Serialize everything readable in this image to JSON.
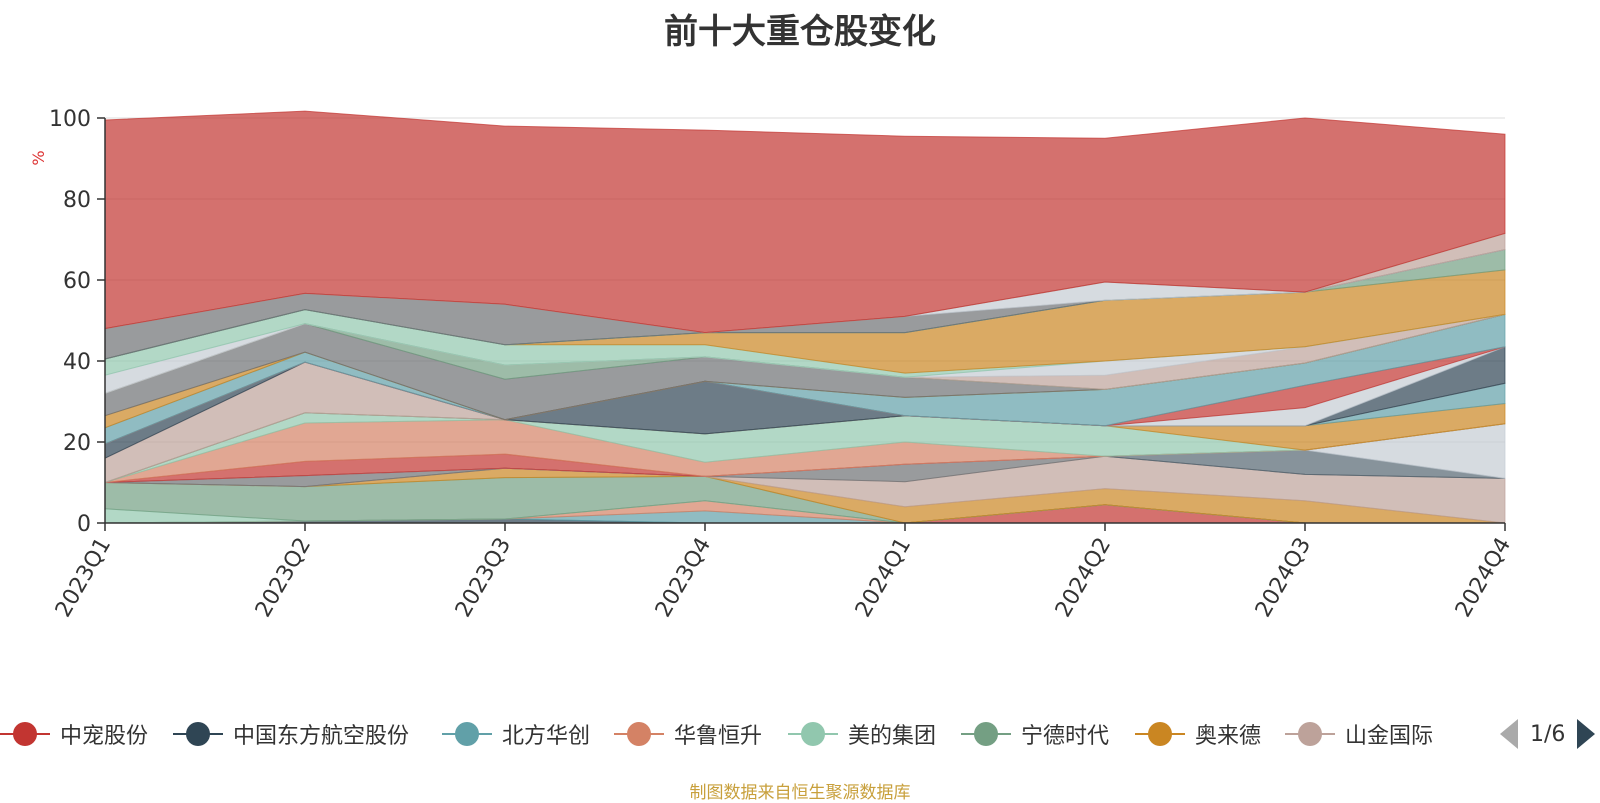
{
  "title": "前十大重仓股变化",
  "source": "制图数据来自恒生聚源数据库",
  "pager": {
    "text": "1/6"
  },
  "chart_data": {
    "type": "area",
    "stacked": true,
    "title": "前十大重仓股变化",
    "ylabel": "%",
    "ylim": [
      0,
      100
    ],
    "yticks": [
      0,
      20,
      40,
      60,
      80,
      100
    ],
    "grid": true,
    "legend_position": "bottom",
    "categories": [
      "2023Q1",
      "2023Q2",
      "2023Q3",
      "2023Q4",
      "2024Q1",
      "2024Q2",
      "2024Q3",
      "2024Q4"
    ],
    "series": [
      {
        "name": "中宠股份",
        "color": "#c23531",
        "values": [
          0.0,
          0.0,
          0.0,
          0.0,
          0.0,
          4.5,
          0.0,
          0.0
        ]
      },
      {
        "name": "中国东方航空股份",
        "color": "#2f4554",
        "values": [
          0.0,
          0.5,
          1.0,
          0.0,
          0.0,
          0.0,
          0.0,
          0.0
        ]
      },
      {
        "name": "北方华创",
        "color": "#61a0a8",
        "values": [
          0.0,
          0.0,
          0.0,
          3.0,
          0.0,
          0.0,
          0.0,
          0.0
        ]
      },
      {
        "name": "华鲁恒升",
        "color": "#d48265",
        "values": [
          0.0,
          0.0,
          0.0,
          2.5,
          0.0,
          0.0,
          0.0,
          0.0
        ]
      },
      {
        "name": "美的集团",
        "color": "#91c7ae",
        "values": [
          3.5,
          0.0,
          0.0,
          0.0,
          0.0,
          0.0,
          0.0,
          0.0
        ]
      },
      {
        "name": "宁德时代",
        "color": "#749f83",
        "values": [
          6.5,
          8.5,
          10.2,
          6.0,
          0.0,
          0.0,
          0.0,
          0.0
        ]
      },
      {
        "name": "奥来德",
        "color": "#ca8622",
        "values": [
          0.0,
          0.0,
          2.3,
          0.0,
          4.0,
          4.0,
          5.5,
          0.0
        ]
      },
      {
        "name": "山金国际",
        "color": "#bda29a",
        "values": [
          0.0,
          0.0,
          0.0,
          0.0,
          6.2,
          8.0,
          6.5,
          11.0
        ]
      },
      {
        "name": "山金国际",
        "color": "#6e7074",
        "values": [
          0.0,
          2.7,
          0.0,
          0.0,
          4.3,
          0.0,
          0.0,
          0.0
        ]
      },
      {
        "name": "山金国际",
        "color": "#546570",
        "values": [
          0.0,
          0.0,
          0.0,
          0.0,
          0.0,
          0.0,
          6.0,
          0.0
        ]
      },
      {
        "name": "山金国际",
        "color": "#c4ccd3",
        "values": [
          0.0,
          0.0,
          0.0,
          0.0,
          0.0,
          0.0,
          0.0,
          13.5
        ]
      },
      {
        "name": "山金国际",
        "color": "#c23531",
        "values": [
          0.0,
          3.5,
          3.5,
          0.0,
          0.0,
          0.0,
          0.0,
          0.0
        ]
      },
      {
        "name": "山金国际",
        "color": "#d48265",
        "values": [
          0.0,
          9.5,
          8.5,
          3.5,
          5.5,
          0.0,
          0.0,
          0.0
        ]
      },
      {
        "name": "山金国际",
        "color": "#91c7ae",
        "values": [
          0.0,
          2.5,
          0.0,
          7.0,
          6.5,
          7.5,
          0.0,
          0.0
        ]
      },
      {
        "name": "山金国际",
        "color": "#ca8622",
        "values": [
          0.0,
          0.0,
          0.0,
          0.0,
          0.0,
          0.0,
          6.0,
          5.0
        ]
      },
      {
        "name": "山金国际",
        "color": "#61a0a8",
        "values": [
          0.0,
          0.0,
          0.0,
          0.0,
          0.0,
          0.0,
          0.0,
          5.0
        ]
      },
      {
        "name": "山金国际",
        "color": "#bda29a",
        "values": [
          6.0,
          12.5,
          0.0,
          0.0,
          0.0,
          0.0,
          0.0,
          0.0
        ]
      },
      {
        "name": "山金国际",
        "color": "#2f4554",
        "values": [
          3.5,
          0.0,
          0.0,
          13.0,
          0.0,
          0.0,
          0.0,
          9.0
        ]
      },
      {
        "name": "山金国际",
        "color": "#c4ccd3",
        "values": [
          0.0,
          0.0,
          0.0,
          0.0,
          0.0,
          0.0,
          4.5,
          0.0
        ]
      },
      {
        "name": "山金国际",
        "color": "#c23531",
        "values": [
          0.0,
          0.0,
          0.0,
          0.0,
          0.0,
          0.0,
          5.5,
          0.0
        ]
      },
      {
        "name": "山金国际",
        "color": "#61a0a8",
        "values": [
          4.0,
          2.5,
          0.0,
          0.0,
          4.5,
          9.0,
          5.5,
          8.0
        ]
      },
      {
        "name": "山金国际",
        "color": "#ca8622",
        "values": [
          3.0,
          0.0,
          0.0,
          0.0,
          0.0,
          0.0,
          0.0,
          0.0
        ]
      },
      {
        "name": "山金国际",
        "color": "#6e7074",
        "values": [
          5.5,
          7.0,
          10.0,
          6.0,
          5.0,
          0.0,
          0.0,
          0.0
        ]
      },
      {
        "name": "山金国际",
        "color": "#749f83",
        "values": [
          0.0,
          0.0,
          3.5,
          0.0,
          0.0,
          0.0,
          0.0,
          0.0
        ]
      },
      {
        "name": "山金国际",
        "color": "#bda29a",
        "values": [
          0.0,
          0.0,
          0.0,
          0.0,
          0.0,
          3.5,
          4.0,
          0.0
        ]
      },
      {
        "name": "山金国际",
        "color": "#c4ccd3",
        "values": [
          4.5,
          0.0,
          0.0,
          0.0,
          0.0,
          3.5,
          0.0,
          0.0
        ]
      },
      {
        "name": "山金国际",
        "color": "#91c7ae",
        "values": [
          4.0,
          3.5,
          5.0,
          3.0,
          1.0,
          0.0,
          0.0,
          0.0
        ]
      },
      {
        "name": "山金国际",
        "color": "#ca8622",
        "values": [
          0.0,
          0.0,
          0.0,
          3.0,
          10.0,
          15.0,
          13.5,
          11.0
        ]
      },
      {
        "name": "山金国际",
        "color": "#749f83",
        "values": [
          0.0,
          0.0,
          0.0,
          0.0,
          0.0,
          0.0,
          0.0,
          5.0
        ]
      },
      {
        "name": "山金国际",
        "color": "#61a0a8",
        "values": [
          0.0,
          0.0,
          0.0,
          0.0,
          0.0,
          0.0,
          0.0,
          0.0
        ]
      },
      {
        "name": "山金国际",
        "color": "#6e7074",
        "values": [
          7.5,
          4.0,
          10.0,
          0.0,
          4.0,
          0.0,
          0.0,
          0.0
        ]
      },
      {
        "name": "山金国际",
        "color": "#c4ccd3",
        "values": [
          0.0,
          0.0,
          0.0,
          0.0,
          0.0,
          4.5,
          0.0,
          0.0
        ]
      },
      {
        "name": "山金国际",
        "color": "#bda29a",
        "values": [
          0.0,
          0.0,
          0.0,
          0.0,
          0.0,
          0.0,
          0.0,
          4.0
        ]
      },
      {
        "name": "山金国际",
        "color": "#c23531",
        "values": [
          51.5,
          45.0,
          44.0,
          50.0,
          44.5,
          35.5,
          43.0,
          24.5
        ]
      }
    ]
  },
  "legend": [
    {
      "name": "中宠股份",
      "color": "#c23531"
    },
    {
      "name": "中国东方航空股份",
      "color": "#2f4554"
    },
    {
      "name": "北方华创",
      "color": "#61a0a8"
    },
    {
      "name": "华鲁恒升",
      "color": "#d48265"
    },
    {
      "name": "美的集团",
      "color": "#91c7ae"
    },
    {
      "name": "宁德时代",
      "color": "#749f83"
    },
    {
      "name": "奥来德",
      "color": "#ca8622"
    },
    {
      "name": "山金国际",
      "color": "#bda29a"
    }
  ]
}
